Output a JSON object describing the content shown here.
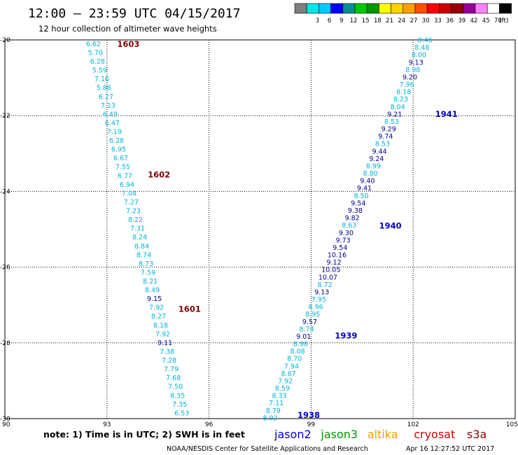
{
  "header": {
    "title": "12:00 – 23:59 UTC 04/15/2017",
    "subtitle": "12 hour collection of altimeter wave heights"
  },
  "legend": {
    "unit": "(ft)",
    "swatches": [
      {
        "label": "",
        "color": "#7f7f7f"
      },
      {
        "label": "3",
        "color": "#00e5e5"
      },
      {
        "label": "6",
        "color": "#00c8ff"
      },
      {
        "label": "9",
        "color": "#0000ff"
      },
      {
        "label": "12",
        "color": "#009090"
      },
      {
        "label": "15",
        "color": "#00c800"
      },
      {
        "label": "18",
        "color": "#009600"
      },
      {
        "label": "21",
        "color": "#ffff00"
      },
      {
        "label": "24",
        "color": "#ffd200"
      },
      {
        "label": "27",
        "color": "#ffa000"
      },
      {
        "label": "30",
        "color": "#ff5000"
      },
      {
        "label": "33",
        "color": "#ff0000"
      },
      {
        "label": "36",
        "color": "#c80000"
      },
      {
        "label": "39",
        "color": "#960000"
      },
      {
        "label": "42",
        "color": "#960096"
      },
      {
        "label": "45",
        "color": "#ff80ff"
      },
      {
        "label": "70",
        "color": "#ffffff"
      },
      {
        "label": "",
        "color": "#000000"
      }
    ]
  },
  "axes": {
    "lat_labels": [
      "-20",
      "-22",
      "-24",
      "-26",
      "-28",
      "-30"
    ],
    "lat_values": [
      -20,
      -22,
      -24,
      -26,
      -28,
      -30
    ],
    "lon_labels": [
      "90",
      "93",
      "96",
      "99",
      "102",
      "105"
    ],
    "lon_values": [
      90,
      93,
      96,
      99,
      102,
      105
    ]
  },
  "footer": {
    "note": "note:  1) Time is in UTC;  2) SWH is in feet",
    "credit": "NOAA/NESDIS Center for Satellite Applications and Research",
    "timestamp": "Apr 16 12:27:52 UTC 2017",
    "satellites": [
      {
        "name": "jason2",
        "color": "#0000cc"
      },
      {
        "name": "jason3",
        "color": "#009a00"
      },
      {
        "name": "altika",
        "color": "#ff9900"
      },
      {
        "name": "cryosat",
        "color": "#dd0000"
      },
      {
        "name": "s3a",
        "color": "#880000"
      }
    ]
  },
  "colors": {
    "light": "#00b4dc",
    "dark": "#00008b",
    "label_west": "#800000",
    "label_east": "#0000cc"
  },
  "tracks": [
    {
      "name": "west-track",
      "start": {
        "lat": -20.1,
        "lon": 92.6
      },
      "end": {
        "lat": -29.85,
        "lon": 95.2
      },
      "values": [
        "6.62",
        "5.70",
        "6.28",
        "5.59",
        "7.16",
        "5.86",
        "6.27",
        "7.13",
        "6.49",
        "6.47",
        "7.19",
        "6.28",
        "6.95",
        "6.67",
        "7.55",
        "6.77",
        "6.94",
        "7.04",
        "7.27",
        "7.23",
        "8.22",
        "7.31",
        "8.24",
        "8.84",
        "8.74",
        "8.73",
        "7.59",
        "8.21",
        "8.49",
        "9.15",
        "7.92",
        "8.27",
        "8.18",
        "7.92",
        "9.11",
        "7.38",
        "7.28",
        "7.79",
        "7.68",
        "7.50",
        "8.35",
        "7.35",
        "6.53"
      ],
      "dark_indices": [
        29,
        34
      ],
      "time_labels": [
        {
          "text": "1603",
          "lat": -20.1,
          "lon": 93.3
        },
        {
          "text": "1602",
          "lat": -23.55,
          "lon": 94.2
        },
        {
          "text": "1601",
          "lat": -27.1,
          "lon": 95.1
        }
      ]
    },
    {
      "name": "east-track",
      "start": {
        "lat": -20.0,
        "lon": 102.35
      },
      "end": {
        "lat": -29.98,
        "lon": 97.8
      },
      "values": [
        "8.46",
        "8.48",
        "8.00",
        "9.13",
        "8.98",
        "9.20",
        "7.96",
        "8.18",
        "8.23",
        "8.04",
        "9.21",
        "8.53",
        "9.29",
        "9.74",
        "8.53",
        "9.44",
        "9.24",
        "8.99",
        "8.80",
        "9.40",
        "9.41",
        "8.50",
        "9.54",
        "9.38",
        "9.82",
        "8.63",
        "9.30",
        "9.73",
        "9.54",
        "10.16",
        "9.12",
        "10.05",
        "10.07",
        "8.72",
        "9.13",
        "7.95",
        "8.96",
        "8.95",
        "9.57",
        "8.74",
        "9.01",
        "8.96",
        "8.08",
        "8.70",
        "7.94",
        "8.67",
        "7.92",
        "8.59",
        "8.33",
        "7.11",
        "8.79",
        "8.92"
      ],
      "dark_indices": [
        3,
        5,
        10,
        12,
        13,
        15,
        16,
        19,
        20,
        22,
        23,
        24,
        26,
        27,
        28,
        29,
        30,
        31,
        32,
        34,
        38,
        40
      ],
      "time_labels": [
        {
          "text": "1941",
          "lat": -21.95,
          "lon": 102.65
        },
        {
          "text": "1940",
          "lat": -24.9,
          "lon": 101.0
        },
        {
          "text": "1939",
          "lat": -27.8,
          "lon": 99.7
        },
        {
          "text": "1938",
          "lat": -29.9,
          "lon": 98.6
        }
      ]
    }
  ]
}
